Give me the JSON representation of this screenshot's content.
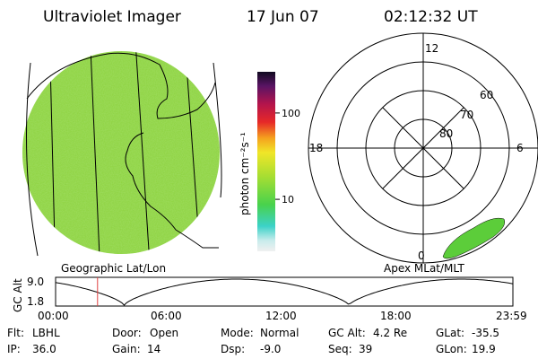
{
  "header": {
    "instrument": "Ultraviolet Imager",
    "date": "17 Jun 07",
    "time": "02:12:32 UT"
  },
  "colorbar": {
    "unit_label": "photon cm⁻²s⁻¹",
    "ticks": [
      {
        "label": "100",
        "value": 100
      },
      {
        "label": "10",
        "value": 10
      }
    ],
    "log_scale": true,
    "range": [
      2.5,
      300
    ]
  },
  "left_panel": {
    "label": "Geographic Lat/Lon",
    "fill_color": "#8cd23c"
  },
  "right_panel": {
    "label": "Apex MLat/MLT",
    "mlt_labels": {
      "top": "12",
      "left": "18",
      "right": "6",
      "bottom": "0"
    },
    "lat_labels": [
      "60",
      "70",
      "80"
    ],
    "fill_color": "#5ccd3a"
  },
  "timeline": {
    "axis_title": "GC Alt",
    "y_ticks": [
      "9.0",
      "1.8"
    ],
    "x_ticks": [
      "00:00",
      "06:00",
      "12:00",
      "18:00",
      "23:59"
    ],
    "marker_time": "02:12",
    "marker_color": "#e04040"
  },
  "status": {
    "row1": [
      {
        "key": "Flt:",
        "value": "LBHL"
      },
      {
        "key": "Door:",
        "value": "Open"
      },
      {
        "key": "Mode:",
        "value": "Normal"
      },
      {
        "key": "GC Alt:",
        "value": "4.2 Re"
      },
      {
        "key": "GLat:",
        "value": "-35.5"
      }
    ],
    "row2": [
      {
        "key": "IP:",
        "value": "36.0"
      },
      {
        "key": "Gain:",
        "value": "14"
      },
      {
        "key": "Dsp:",
        "value": "-9.0"
      },
      {
        "key": "Seq:",
        "value": "39"
      },
      {
        "key": "GLon:",
        "value": "19.9"
      }
    ]
  }
}
